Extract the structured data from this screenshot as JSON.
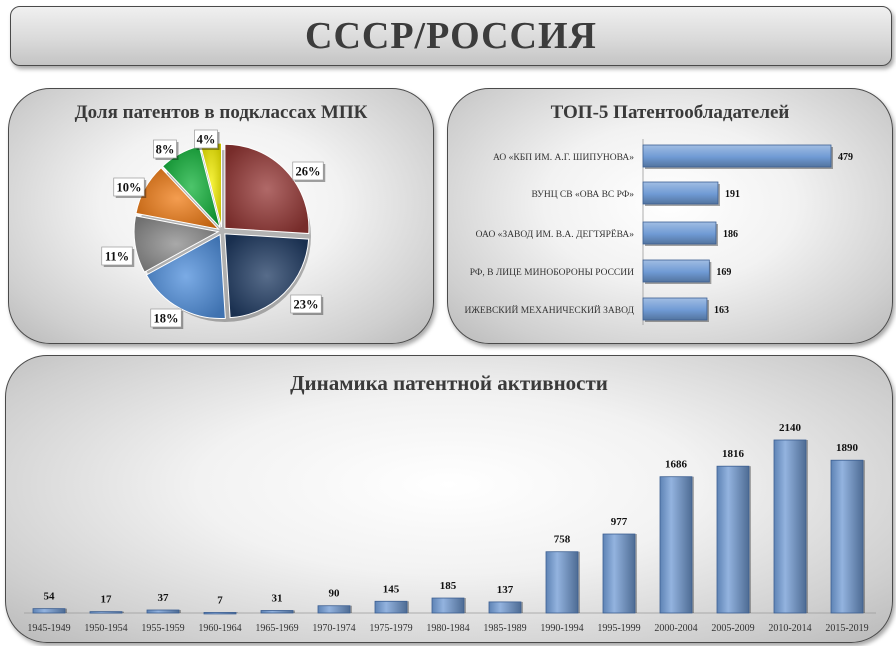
{
  "page": {
    "title": "СССР/РОССИЯ"
  },
  "chart_data": [
    {
      "type": "pie",
      "title": "Доля патентов в подклассах МПК",
      "slices": [
        {
          "value": 26,
          "label": "26%",
          "color": "#953735"
        },
        {
          "value": 23,
          "label": "23%",
          "color": "#1f3b63"
        },
        {
          "value": 18,
          "label": "18%",
          "color": "#4f8fdc"
        },
        {
          "value": 11,
          "label": "11%",
          "color": "#8c8c8c"
        },
        {
          "value": 10,
          "label": "10%",
          "color": "#f07c15"
        },
        {
          "value": 8,
          "label": "8%",
          "color": "#12b23a"
        },
        {
          "value": 4,
          "label": "4%",
          "color": "#f5f000"
        }
      ]
    },
    {
      "type": "bar",
      "orientation": "horizontal",
      "title": "ТОП-5 Патентообладателей",
      "categories": [
        "АО «КБП ИМ. А.Г. ШИПУНОВА»",
        "ВУНЦ СВ «ОВА ВС РФ»",
        "ОАО «ЗАВОД ИМ. В.А. ДЕГТЯРЁВА»",
        "РФ, В ЛИЦЕ МИНОБОРОНЫ РОССИИ",
        "ИЖЕВСКИЙ МЕХАНИЧЕСКИЙ  ЗАВОД"
      ],
      "values": [
        479,
        191,
        186,
        169,
        163
      ],
      "data_labels": [
        "479",
        "191",
        "186",
        "169",
        "163"
      ],
      "color": "#6f9ad4"
    },
    {
      "type": "bar",
      "title": "Динамика патентной активности",
      "categories": [
        "1945-1949",
        "1950-1954",
        "1955-1959",
        "1960-1964",
        "1965-1969",
        "1970-1974",
        "1975-1979",
        "1980-1984",
        "1985-1989",
        "1990-1994",
        "1995-1999",
        "2000-2004",
        "2005-2009",
        "2010-2014",
        "2015-2019"
      ],
      "values": [
        54,
        17,
        37,
        7,
        31,
        90,
        145,
        185,
        137,
        758,
        977,
        1686,
        1816,
        2140,
        1890
      ],
      "data_labels": [
        "54",
        "17",
        "37",
        "7",
        "31",
        "90",
        "145",
        "185",
        "137",
        "758",
        "977",
        "1686",
        "1816",
        "2140",
        "1890"
      ],
      "color": "#6f9ad4"
    }
  ]
}
